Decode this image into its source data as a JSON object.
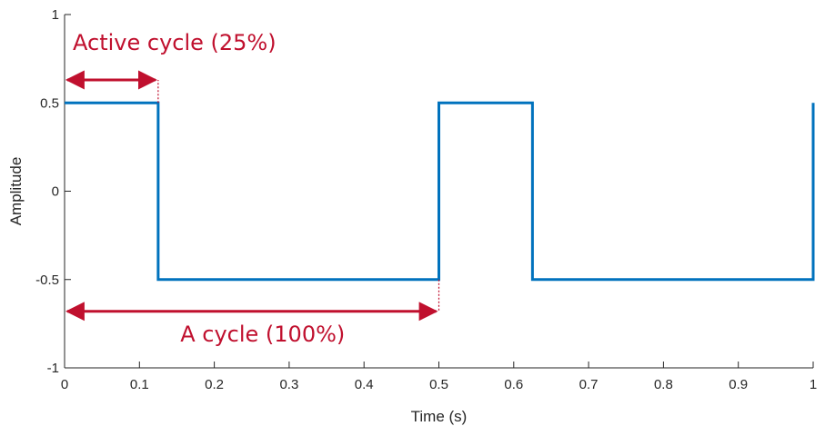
{
  "chart_data": {
    "type": "line",
    "title": "",
    "xlabel": "Time (s)",
    "ylabel": "Amplitude",
    "xlim": [
      0,
      1
    ],
    "ylim": [
      -1,
      1
    ],
    "x_ticks": [
      0,
      0.1,
      0.2,
      0.3,
      0.4,
      0.5,
      0.6,
      0.7,
      0.8,
      0.9,
      1
    ],
    "x_tick_labels": [
      "0",
      "0.1",
      "0.2",
      "0.3",
      "0.4",
      "0.5",
      "0.6",
      "0.7",
      "0.8",
      "0.9",
      "1"
    ],
    "y_ticks": [
      -1,
      -0.5,
      0,
      0.5,
      1
    ],
    "y_tick_labels": [
      "-1",
      "-0.5",
      "0",
      "0.5",
      "1"
    ],
    "grid": false,
    "legend": "none",
    "series": [
      {
        "color": "#0072BD",
        "points": [
          [
            0,
            0.5
          ],
          [
            0.125,
            0.5
          ],
          [
            0.125,
            -0.5
          ],
          [
            0.5,
            -0.5
          ],
          [
            0.5,
            0.5
          ],
          [
            0.625,
            0.5
          ],
          [
            0.625,
            -0.5
          ],
          [
            1,
            -0.5
          ],
          [
            1,
            0.5
          ]
        ]
      }
    ],
    "annotations": [
      {
        "text": "Active cycle (25%)",
        "x_start": 0,
        "x_end": 0.125,
        "arrow_y": 0.63,
        "dashed_from_y": 0.5,
        "color": "#C0102E"
      },
      {
        "text": "A cycle (100%)",
        "x_start": 0,
        "x_end": 0.5,
        "arrow_y": -0.68,
        "dashed_from_y": -0.5,
        "color": "#C0102E"
      }
    ]
  }
}
